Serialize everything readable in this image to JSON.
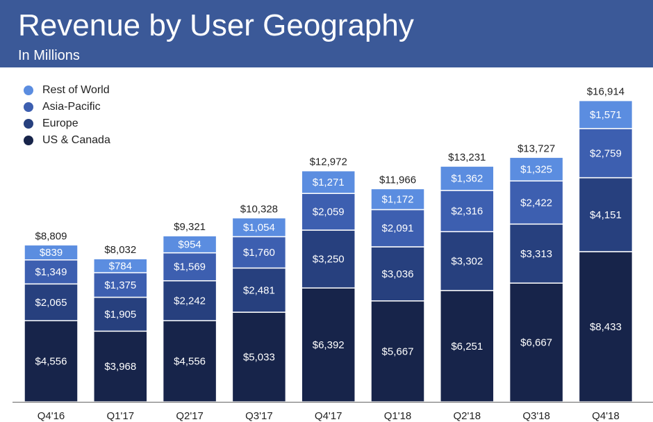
{
  "header": {
    "title": "Revenue by User Geography",
    "subtitle": "In Millions"
  },
  "colors": {
    "header_bg": "#3b5998",
    "rest_of_world": "#5b8de0",
    "asia_pacific": "#3d5fb0",
    "europe": "#27407e",
    "us_canada": "#17244a"
  },
  "chart_data": {
    "type": "bar",
    "stacked": true,
    "title": "Revenue by User Geography",
    "subtitle": "In Millions",
    "categories": [
      "Q4'16",
      "Q1'17",
      "Q2'17",
      "Q3'17",
      "Q4'17",
      "Q1'18",
      "Q2'18",
      "Q3'18",
      "Q4'18"
    ],
    "series": [
      {
        "name": "US & Canada",
        "values": [
          4556,
          3968,
          4556,
          5033,
          6392,
          5667,
          6251,
          6667,
          8433
        ],
        "labels": [
          "$4,556",
          "$3,968",
          "$4,556",
          "$5,033",
          "$6,392",
          "$5,667",
          "$6,251",
          "$6,667",
          "$8,433"
        ]
      },
      {
        "name": "Europe",
        "values": [
          2065,
          1905,
          2242,
          2481,
          3250,
          3036,
          3302,
          3313,
          4151
        ],
        "labels": [
          "$2,065",
          "$1,905",
          "$2,242",
          "$2,481",
          "$3,250",
          "$3,036",
          "$3,302",
          "$3,313",
          "$4,151"
        ]
      },
      {
        "name": "Asia-Pacific",
        "values": [
          1349,
          1375,
          1569,
          1760,
          2059,
          2091,
          2316,
          2422,
          2759
        ],
        "labels": [
          "$1,349",
          "$1,375",
          "$1,569",
          "$1,760",
          "$2,059",
          "$2,091",
          "$2,316",
          "$2,422",
          "$2,759"
        ]
      },
      {
        "name": "Rest of World",
        "values": [
          839,
          784,
          954,
          1054,
          1271,
          1172,
          1362,
          1325,
          1571
        ],
        "labels": [
          "$839",
          "$784",
          "$954",
          "$1,054",
          "$1,271",
          "$1,172",
          "$1,362",
          "$1,325",
          "$1,571"
        ]
      }
    ],
    "totals": [
      8809,
      8032,
      9321,
      10328,
      12972,
      11966,
      13231,
      13727,
      16914
    ],
    "total_labels": [
      "$8,809",
      "$8,032",
      "$9,321",
      "$10,328",
      "$12,972",
      "$11,966",
      "$13,231",
      "$13,727",
      "$16,914"
    ],
    "ylim": [
      0,
      17000
    ],
    "grid": false,
    "legend_position": "top-left"
  }
}
